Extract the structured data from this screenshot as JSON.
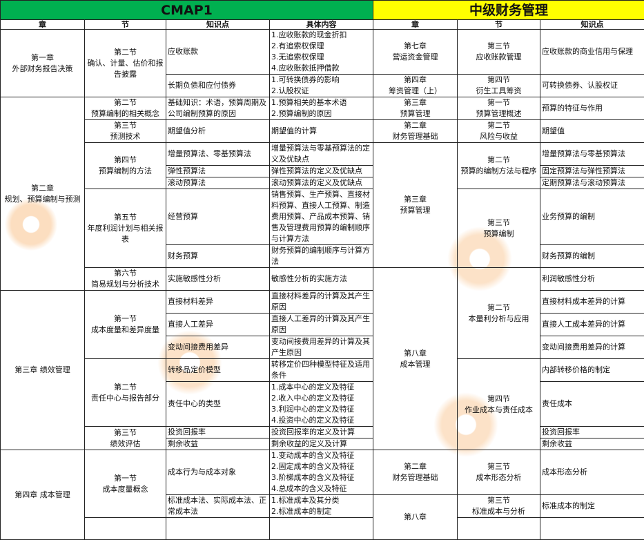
{
  "title_left": "CMAP1",
  "title_right": "中级财务管理",
  "headers": {
    "left": [
      "章",
      "节",
      "知识点",
      "具体内容"
    ],
    "right": [
      "章",
      "节",
      "知识点"
    ]
  },
  "cmap": {
    "chapters": [
      "第一章\n外部财务报告决策",
      "第二章\n规划、预算编制与预测",
      "第三章 绩效管理",
      "第四章 成本管理"
    ],
    "sections": [
      "第二节\n确认、计量、估价和报告披露",
      "第二节\n预算编制的相关概念",
      "第三节\n预测技术",
      "第四节\n预算编制的方法",
      "第五节\n年度利润计划与相关报表",
      "第六节\n简易规划与分析技术",
      "第一节\n成本度量和差异度量",
      "第二节\n责任中心与报告部分",
      "第三节\n绩效评估",
      "第一节\n成本度量概念"
    ],
    "points": [
      "应收账款",
      "长期负债和应付债券",
      "基础知识：术语，预算周期及公司编制预算的原因",
      "期望值分析",
      "增量预算法、零基预算法",
      "弹性预算法",
      "滚动预算法",
      "经营预算",
      "财务预算",
      "实施敏感性分析",
      "直接材料差异",
      "直接人工差异",
      "变动间接费用差异",
      "转移品定价模型",
      "责任中心的类型",
      "投资回报率",
      "剩余收益",
      "成本行为与成本对象",
      "标准成本法、实际成本法、正常成本法"
    ],
    "contents": [
      "1.应收账款的现金折扣\n2.有追索权保理\n3.无追索权保理\n4.应收账款抵押借款",
      "1.可转换债券的影响\n2.认股权证",
      "1.预算相关的基本术语\n2.预算编制的原因",
      "期望值的计算",
      "增量预算法与零基预算法的定义及优缺点",
      "弹性预算法的定义及优缺点",
      "滚动预算法的定义及优缺点",
      "销售预算、生产预算、直接材料预算、直接人工预算、制造费用预算、产品成本预算、销售及管理费用预算的编制顺序与计算方法",
      "财务预算的编制顺序与计算方法",
      "敏感性分析的实施方法",
      "直接材料差异的计算及其产生原因",
      "直接人工差异的计算及其产生原因",
      "变动间接费用差异的计算及其产生原因",
      "转移定价四种模型特征及适用条件",
      "1.成本中心的定义及特征\n2.收入中心的定义及特征\n3.利润中心的定义及特征\n4.投资中心的定义及特征",
      "投资回报率的定义及计算",
      "剩余收益的定义及计算",
      "1.变动成本的含义及特征\n2.固定成本的含义及特征\n3.阶梯成本的含义及特征\n4.总成本的含义及特征",
      "1.标准成本及其分类\n2.标准成本的制定"
    ]
  },
  "zhongji": {
    "chapters": [
      "第七章\n营运资金管理",
      "第四章\n筹资管理（上）",
      "第三章\n预算管理",
      "第二章\n财务管理基础",
      "第三章\n预算管理",
      "第八章\n成本管理",
      "第二章\n财务管理基础",
      "第八章"
    ],
    "sections": [
      "第三节\n应收账款管理",
      "第四节\n衍生工具筹资",
      "第一节\n预算管理概述",
      "第二节\n风险与收益",
      "第二节\n预算的编制方法与程序",
      "第三节\n预算编制",
      "第二节\n本量利分析与应用",
      "第四节\n作业成本与责任成本",
      "第三节\n成本形态分析",
      "第三节\n标准成本与分析"
    ],
    "points": [
      "应收账款的商业信用与保理",
      "可转换债券、认股权证",
      "预算的特征与作用",
      "期望值",
      "增量预算法与零基预算法",
      "固定预算法与弹性预算法",
      "定期预算法与滚动预算法",
      "业务预算的编制",
      "财务预算的编制",
      "利润敏感性分析",
      "直接材料成本差异的计算",
      "直接人工成本差异的计算",
      "变动间接费用差异的计算",
      "内部转移价格的制定",
      "责任成本",
      "投资回报率",
      "剩余收益",
      "成本形态分析",
      "标准成本的制定"
    ]
  },
  "colors": {
    "left_title_bg": "#00b050",
    "right_title_bg": "#ffff00",
    "watermark": "#f5a04a"
  }
}
